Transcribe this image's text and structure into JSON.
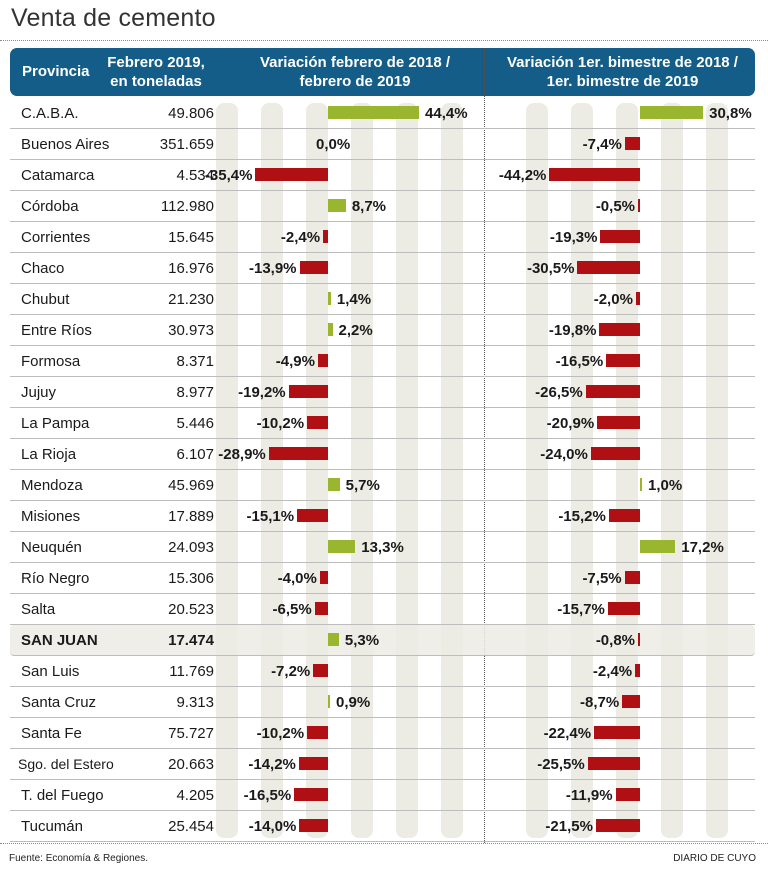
{
  "title": "Venta de cemento",
  "header": {
    "provincia": "Provincia",
    "febrero_line1": "Febrero 2019,",
    "febrero_line2": "en toneladas",
    "var1_line1": "Variación febrero de 2018 /",
    "var1_line2": "febrero de 2019",
    "var2_line1": "Variación 1er. bimestre de 2018 /",
    "var2_line2": "1er. bimestre de 2019"
  },
  "colors": {
    "header": "#135d88",
    "positive": "#9ab62f",
    "negative": "#b00f14",
    "stripe": "#ecebe4"
  },
  "footer": {
    "source": "Fuente: Economía & Regiones.",
    "brand": "DIARIO DE CUYO"
  },
  "chart_data": {
    "type": "table",
    "title": "Venta de cemento",
    "columns": [
      "Provincia",
      "Febrero 2019, en toneladas",
      "Variación febrero de 2018 / febrero de 2019",
      "Variación 1er. bimestre de 2018 / 1er. bimestre de 2019"
    ],
    "highlight": "SAN JUAN",
    "rows": [
      {
        "provincia": "C.A.B.A.",
        "toneladas": "49.806",
        "var_feb": 44.4,
        "var_feb_label": "44,4%",
        "var_bim": 30.8,
        "var_bim_label": "30,8%"
      },
      {
        "provincia": "Buenos Aires",
        "toneladas": "351.659",
        "var_feb": 0.0,
        "var_feb_label": "0,0%",
        "var_bim": -7.4,
        "var_bim_label": "-7,4%"
      },
      {
        "provincia": "Catamarca",
        "toneladas": "4.534",
        "var_feb": -35.4,
        "var_feb_label": "-35,4%",
        "var_bim": -44.2,
        "var_bim_label": "-44,2%"
      },
      {
        "provincia": "Córdoba",
        "toneladas": "112.980",
        "var_feb": 8.7,
        "var_feb_label": "8,7%",
        "var_bim": -0.5,
        "var_bim_label": "-0,5%"
      },
      {
        "provincia": "Corrientes",
        "toneladas": "15.645",
        "var_feb": -2.4,
        "var_feb_label": "-2,4%",
        "var_bim": -19.3,
        "var_bim_label": "-19,3%"
      },
      {
        "provincia": "Chaco",
        "toneladas": "16.976",
        "var_feb": -13.9,
        "var_feb_label": "-13,9%",
        "var_bim": -30.5,
        "var_bim_label": "-30,5%"
      },
      {
        "provincia": "Chubut",
        "toneladas": "21.230",
        "var_feb": 1.4,
        "var_feb_label": "1,4%",
        "var_bim": -2.0,
        "var_bim_label": "-2,0%"
      },
      {
        "provincia": "Entre Ríos",
        "toneladas": "30.973",
        "var_feb": 2.2,
        "var_feb_label": "2,2%",
        "var_bim": -19.8,
        "var_bim_label": "-19,8%"
      },
      {
        "provincia": "Formosa",
        "toneladas": "8.371",
        "var_feb": -4.9,
        "var_feb_label": "-4,9%",
        "var_bim": -16.5,
        "var_bim_label": "-16,5%"
      },
      {
        "provincia": "Jujuy",
        "toneladas": "8.977",
        "var_feb": -19.2,
        "var_feb_label": "-19,2%",
        "var_bim": -26.5,
        "var_bim_label": "-26,5%"
      },
      {
        "provincia": "La Pampa",
        "toneladas": "5.446",
        "var_feb": -10.2,
        "var_feb_label": "-10,2%",
        "var_bim": -20.9,
        "var_bim_label": "-20,9%"
      },
      {
        "provincia": "La Rioja",
        "toneladas": "6.107",
        "var_feb": -28.9,
        "var_feb_label": "-28,9%",
        "var_bim": -24.0,
        "var_bim_label": "-24,0%"
      },
      {
        "provincia": "Mendoza",
        "toneladas": "45.969",
        "var_feb": 5.7,
        "var_feb_label": "5,7%",
        "var_bim": 1.0,
        "var_bim_label": "1,0%"
      },
      {
        "provincia": "Misiones",
        "toneladas": "17.889",
        "var_feb": -15.1,
        "var_feb_label": "-15,1%",
        "var_bim": -15.2,
        "var_bim_label": "-15,2%"
      },
      {
        "provincia": "Neuquén",
        "toneladas": "24.093",
        "var_feb": 13.3,
        "var_feb_label": "13,3%",
        "var_bim": 17.2,
        "var_bim_label": "17,2%"
      },
      {
        "provincia": "Río Negro",
        "toneladas": "15.306",
        "var_feb": -4.0,
        "var_feb_label": "-4,0%",
        "var_bim": -7.5,
        "var_bim_label": "-7,5%"
      },
      {
        "provincia": "Salta",
        "toneladas": "20.523",
        "var_feb": -6.5,
        "var_feb_label": "-6,5%",
        "var_bim": -15.7,
        "var_bim_label": "-15,7%"
      },
      {
        "provincia": "SAN JUAN",
        "toneladas": "17.474",
        "var_feb": 5.3,
        "var_feb_label": "5,3%",
        "var_bim": -0.8,
        "var_bim_label": "-0,8%"
      },
      {
        "provincia": "San Luis",
        "toneladas": "11.769",
        "var_feb": -7.2,
        "var_feb_label": "-7,2%",
        "var_bim": -2.4,
        "var_bim_label": "-2,4%"
      },
      {
        "provincia": "Santa Cruz",
        "toneladas": "9.313",
        "var_feb": 0.9,
        "var_feb_label": "0,9%",
        "var_bim": -8.7,
        "var_bim_label": "-8,7%"
      },
      {
        "provincia": "Santa Fe",
        "toneladas": "75.727",
        "var_feb": -10.2,
        "var_feb_label": "-10,2%",
        "var_bim": -22.4,
        "var_bim_label": "-22,4%"
      },
      {
        "provincia": "Sgo. del Estero",
        "toneladas": "20.663",
        "var_feb": -14.2,
        "var_feb_label": "-14,2%",
        "var_bim": -25.5,
        "var_bim_label": "-25,5%"
      },
      {
        "provincia": "T. del Fuego",
        "toneladas": "4.205",
        "var_feb": -16.5,
        "var_feb_label": "-16,5%",
        "var_bim": -11.9,
        "var_bim_label": "-11,9%"
      },
      {
        "provincia": "Tucumán",
        "toneladas": "25.454",
        "var_feb": -14.0,
        "var_feb_label": "-14,0%",
        "var_bim": -21.5,
        "var_bim_label": "-21,5%"
      }
    ]
  }
}
